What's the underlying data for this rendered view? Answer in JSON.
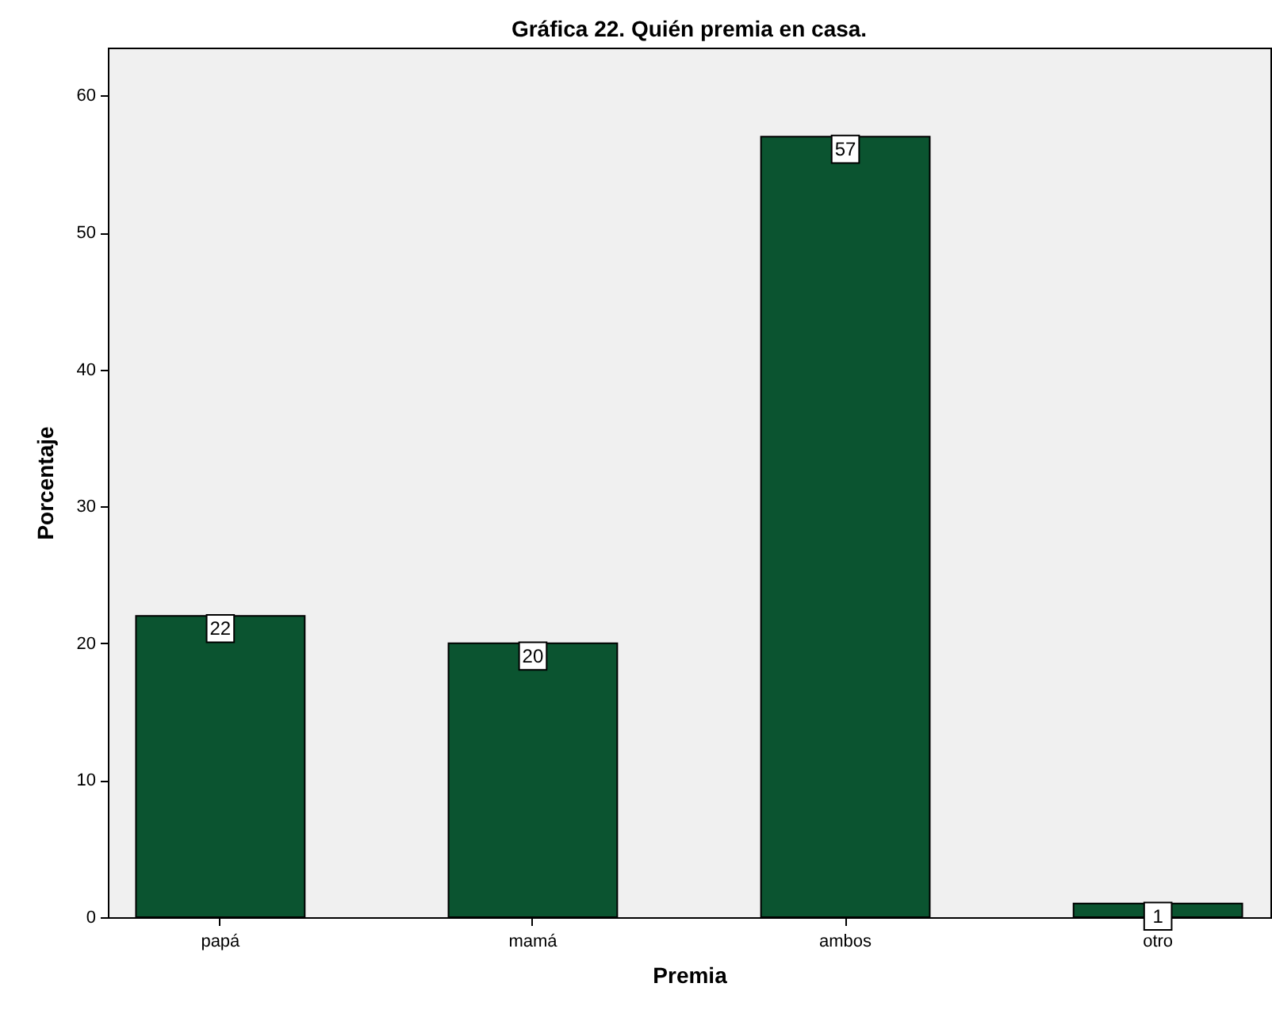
{
  "chart_data": {
    "type": "bar",
    "title": "Gráfica 22. Quién premia en casa.",
    "xlabel": "Premia",
    "ylabel": "Porcentaje",
    "categories": [
      "papá",
      "mamá",
      "ambos",
      "otro"
    ],
    "values": [
      22,
      20,
      57,
      1
    ],
    "color": "#0b5430",
    "ylim": [
      0,
      63.5
    ],
    "yticks": [
      0,
      10,
      20,
      30,
      40,
      50,
      60
    ],
    "grid": false,
    "data_labels": true
  }
}
